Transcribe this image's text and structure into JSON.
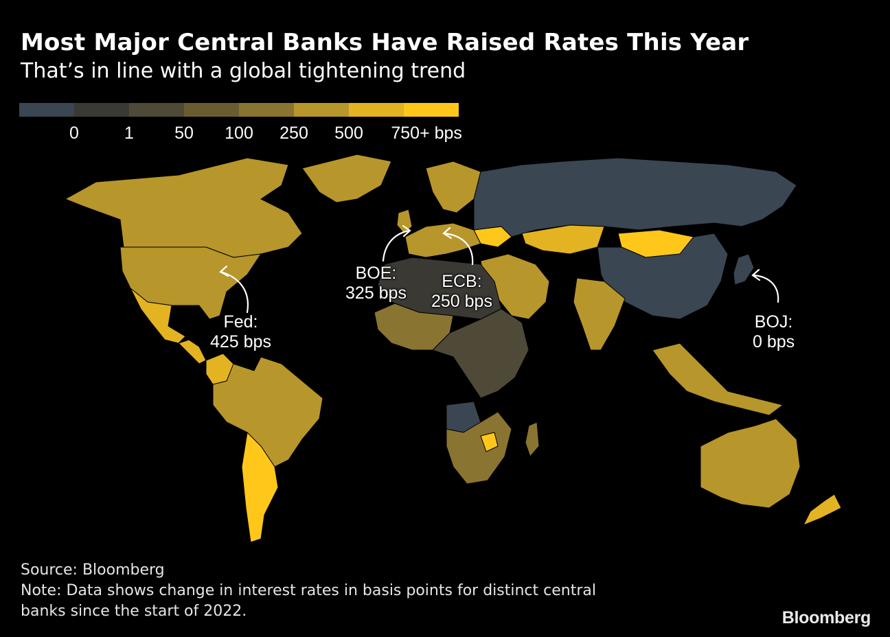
{
  "header": {
    "title": "Most Major Central Banks Have Raised Rates This Year",
    "subtitle": "That’s in line with a global tightening trend"
  },
  "legend": {
    "swatches": [
      {
        "color": "#3a4651"
      },
      {
        "color": "#3a3934"
      },
      {
        "color": "#4f4a37"
      },
      {
        "color": "#6b5c30"
      },
      {
        "color": "#8a7431"
      },
      {
        "color": "#b7962b"
      },
      {
        "color": "#e3b322"
      },
      {
        "color": "#ffc71a"
      }
    ],
    "labels": [
      "0",
      "1",
      "50",
      "100",
      "250",
      "500",
      "750+ bps"
    ]
  },
  "annotations": {
    "fed": {
      "name": "Fed:",
      "value": "425 bps"
    },
    "boe": {
      "name": "BOE:",
      "value": "325 bps"
    },
    "ecb": {
      "name": "ECB:",
      "value": "250 bps"
    },
    "boj": {
      "name": "BOJ:",
      "value": "0 bps"
    }
  },
  "map_colors": {
    "north_america": "#b7962b",
    "greenland": "#b7962b",
    "mexico": "#e3b322",
    "south_america": "#b7962b",
    "argentina": "#ffc71a",
    "colombia": "#e3b322",
    "venezuela": "#000000",
    "europe": "#b7962b",
    "ukraine": "#ffc71a",
    "russia": "#3a4651",
    "china": "#3a4651",
    "kazakhstan": "#e3b322",
    "mongolia": "#ffc71a",
    "middle_east": "#b7962b",
    "africa_north": "#3a3934",
    "africa_west": "#8a7431",
    "africa_central": "#4f4a37",
    "africa_south": "#8a7431",
    "angola": "#3a4651",
    "zimbabwe": "#ffc71a",
    "india": "#b7962b",
    "southeast_asia": "#b7962b",
    "australia": "#b7962b",
    "japan": "#3a4651",
    "new_zealand": "#e3b322"
  },
  "footer": {
    "source": "Source: Bloomberg",
    "note_line1": "Note: Data shows change in interest rates in basis points for distinct central",
    "note_line2": "banks since the start of 2022."
  },
  "brand": "Bloomberg"
}
